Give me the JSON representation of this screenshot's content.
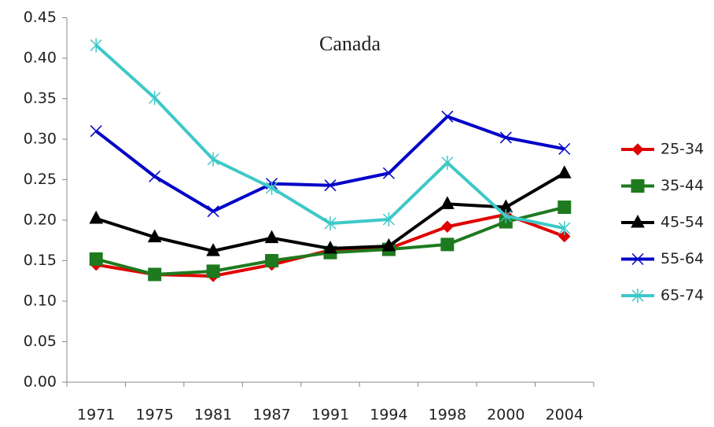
{
  "chart_data": {
    "type": "line",
    "title": "Canada",
    "categories": [
      "1971",
      "1975",
      "1981",
      "1987",
      "1991",
      "1994",
      "1998",
      "2000",
      "2004"
    ],
    "ylim": [
      0,
      0.45
    ],
    "yticks": [
      {
        "value": 0,
        "label": "0.00"
      },
      {
        "value": 0.05,
        "label": "0.05"
      },
      {
        "value": 0.1,
        "label": "0.10"
      },
      {
        "value": 0.15,
        "label": "0.15"
      },
      {
        "value": 0.2,
        "label": "0.20"
      },
      {
        "value": 0.25,
        "label": "0.25"
      },
      {
        "value": 0.3,
        "label": "0.30"
      },
      {
        "value": 0.35,
        "label": "0.35"
      },
      {
        "value": 0.4,
        "label": "0.40"
      },
      {
        "value": 0.45,
        "label": "0.45"
      }
    ],
    "grid": false,
    "legend": "right",
    "series": [
      {
        "name": "25-34",
        "color": "#e00000",
        "marker": "diamond",
        "values": [
          0.145,
          0.133,
          0.131,
          0.145,
          0.163,
          0.165,
          0.192,
          0.207,
          0.18
        ]
      },
      {
        "name": "35-44",
        "color": "#1e7a1e",
        "marker": "square",
        "values": [
          0.152,
          0.133,
          0.137,
          0.15,
          0.16,
          0.164,
          0.17,
          0.198,
          0.216
        ]
      },
      {
        "name": "45-54",
        "color": "#000000",
        "marker": "triangle",
        "values": [
          0.202,
          0.179,
          0.162,
          0.178,
          0.165,
          0.168,
          0.22,
          0.216,
          0.258
        ]
      },
      {
        "name": "55-64",
        "color": "#0000c8",
        "marker": "x",
        "values": [
          0.31,
          0.254,
          0.211,
          0.245,
          0.243,
          0.258,
          0.328,
          0.302,
          0.288
        ]
      },
      {
        "name": "65-74",
        "color": "#3ec8c8",
        "marker": "star",
        "values": [
          0.416,
          0.351,
          0.275,
          0.24,
          0.196,
          0.201,
          0.271,
          0.205,
          0.19
        ]
      }
    ]
  }
}
